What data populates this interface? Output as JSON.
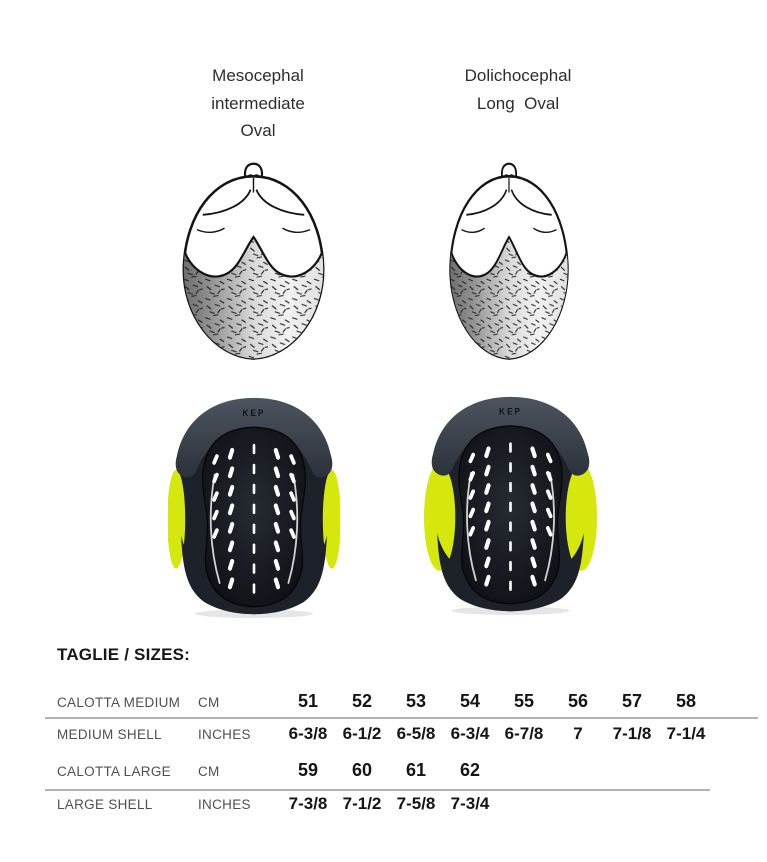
{
  "headings": {
    "left": {
      "line1": "Mesocephal",
      "line2": "intermediate",
      "line3": "Oval"
    },
    "right": {
      "line1": "Dolichocephal",
      "line2": "Long  Oval"
    }
  },
  "helmets": {
    "left_brand": "KEP",
    "right_brand": "KEP"
  },
  "colors": {
    "accent_yellow": "#d5e70d",
    "liner_dark": "#1d212a",
    "brim_grey": "#3e4650",
    "table_line_grey": "#b2b2b2",
    "label_grey": "#4f4f4f"
  },
  "sizes": {
    "title": "TAGLIE / SIZES:",
    "medium": {
      "label_cm": "CALOTTA MEDIUM",
      "unit_cm": "CM",
      "cm": [
        "51",
        "52",
        "53",
        "54",
        "55",
        "56",
        "57",
        "58"
      ],
      "label_inches": "MEDIUM SHELL",
      "unit_inches": "INCHES",
      "inches": [
        "6-3/8",
        "6-1/2",
        "6-5/8",
        "6-3/4",
        "6-7/8",
        "7",
        "7-1/8",
        "7-1/4"
      ]
    },
    "large": {
      "label_cm": "CALOTTA LARGE",
      "unit_cm": "CM",
      "cm": [
        "59",
        "60",
        "61",
        "62"
      ],
      "label_inches": "LARGE SHELL",
      "unit_inches": "INCHES",
      "inches": [
        "7-3/8",
        "7-1/2",
        "7-5/8",
        "7-3/4"
      ]
    }
  }
}
